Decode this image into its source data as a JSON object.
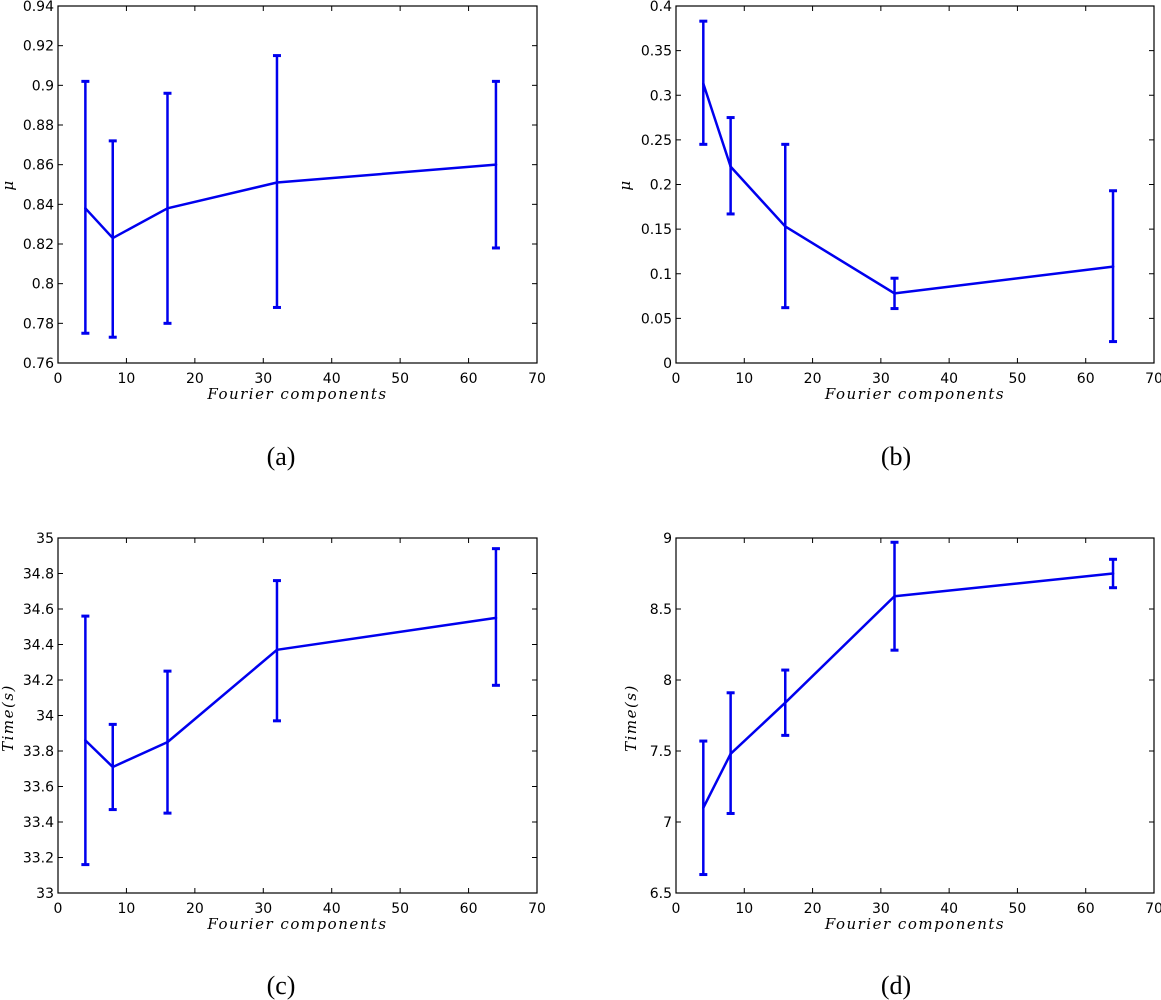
{
  "colors": {
    "series": "#0000ee",
    "axis": "#000000"
  },
  "chart_data": [
    {
      "panel": "a",
      "caption": "(a)",
      "type": "line",
      "xlabel": "Fourier components",
      "ylabel": "μ",
      "xlim": [
        0,
        70
      ],
      "ylim": [
        0.76,
        0.94
      ],
      "xticks": [
        0,
        10,
        20,
        30,
        40,
        50,
        60,
        70
      ],
      "xtick_labels": [
        "0",
        "10",
        "20",
        "30",
        "40",
        "50",
        "60",
        "70"
      ],
      "yticks": [
        0.76,
        0.78,
        0.8,
        0.82,
        0.84,
        0.86,
        0.88,
        0.9,
        0.92,
        0.94
      ],
      "ytick_labels": [
        "0.76",
        "0.78",
        "0.8",
        "0.82",
        "0.84",
        "0.86",
        "0.88",
        "0.9",
        "0.92",
        "0.94"
      ],
      "x": [
        4,
        8,
        16,
        32,
        64
      ],
      "y": [
        0.838,
        0.823,
        0.838,
        0.851,
        0.86
      ],
      "err_low": [
        0.775,
        0.773,
        0.78,
        0.788,
        0.818
      ],
      "err_high": [
        0.902,
        0.872,
        0.896,
        0.915,
        0.902
      ]
    },
    {
      "panel": "b",
      "caption": "(b)",
      "type": "line",
      "xlabel": "Fourier components",
      "ylabel": "μ",
      "xlim": [
        0,
        70
      ],
      "ylim": [
        0,
        0.4
      ],
      "xticks": [
        0,
        10,
        20,
        30,
        40,
        50,
        60,
        70
      ],
      "xtick_labels": [
        "0",
        "10",
        "20",
        "30",
        "40",
        "50",
        "60",
        "70"
      ],
      "yticks": [
        0,
        0.05,
        0.1,
        0.15,
        0.2,
        0.25,
        0.3,
        0.35,
        0.4
      ],
      "ytick_labels": [
        "0",
        "0.05",
        "0.1",
        "0.15",
        "0.2",
        "0.25",
        "0.3",
        "0.35",
        "0.4"
      ],
      "x": [
        4,
        8,
        16,
        32,
        64
      ],
      "y": [
        0.313,
        0.22,
        0.153,
        0.078,
        0.108
      ],
      "err_low": [
        0.245,
        0.167,
        0.062,
        0.061,
        0.024
      ],
      "err_high": [
        0.383,
        0.275,
        0.245,
        0.095,
        0.193
      ]
    },
    {
      "panel": "c",
      "caption": "(c)",
      "type": "line",
      "xlabel": "Fourier components",
      "ylabel": "Time(s)",
      "xlim": [
        0,
        70
      ],
      "ylim": [
        33,
        35
      ],
      "xticks": [
        0,
        10,
        20,
        30,
        40,
        50,
        60,
        70
      ],
      "xtick_labels": [
        "0",
        "10",
        "20",
        "30",
        "40",
        "50",
        "60",
        "70"
      ],
      "yticks": [
        33,
        33.2,
        33.4,
        33.6,
        33.8,
        34,
        34.2,
        34.4,
        34.6,
        34.8,
        35
      ],
      "ytick_labels": [
        "33",
        "33.2",
        "33.4",
        "33.6",
        "33.8",
        "34",
        "34.2",
        "34.4",
        "34.6",
        "34.8",
        "35"
      ],
      "x": [
        4,
        8,
        16,
        32,
        64
      ],
      "y": [
        33.86,
        33.71,
        33.85,
        34.37,
        34.55
      ],
      "err_low": [
        33.16,
        33.47,
        33.45,
        33.97,
        34.17
      ],
      "err_high": [
        34.56,
        33.95,
        34.25,
        34.76,
        34.94
      ]
    },
    {
      "panel": "d",
      "caption": "(d)",
      "type": "line",
      "xlabel": "Fourier components",
      "ylabel": "Time(s)",
      "xlim": [
        0,
        70
      ],
      "ylim": [
        6.5,
        9
      ],
      "xticks": [
        0,
        10,
        20,
        30,
        40,
        50,
        60,
        70
      ],
      "xtick_labels": [
        "0",
        "10",
        "20",
        "30",
        "40",
        "50",
        "60",
        "70"
      ],
      "yticks": [
        6.5,
        7,
        7.5,
        8,
        8.5,
        9
      ],
      "ytick_labels": [
        "6.5",
        "7",
        "7.5",
        "8",
        "8.5",
        "9"
      ],
      "x": [
        4,
        8,
        16,
        32,
        64
      ],
      "y": [
        7.1,
        7.48,
        7.84,
        8.59,
        8.75
      ],
      "err_low": [
        6.63,
        7.06,
        7.61,
        8.21,
        8.65
      ],
      "err_high": [
        7.57,
        7.91,
        8.07,
        8.97,
        8.85
      ]
    }
  ]
}
